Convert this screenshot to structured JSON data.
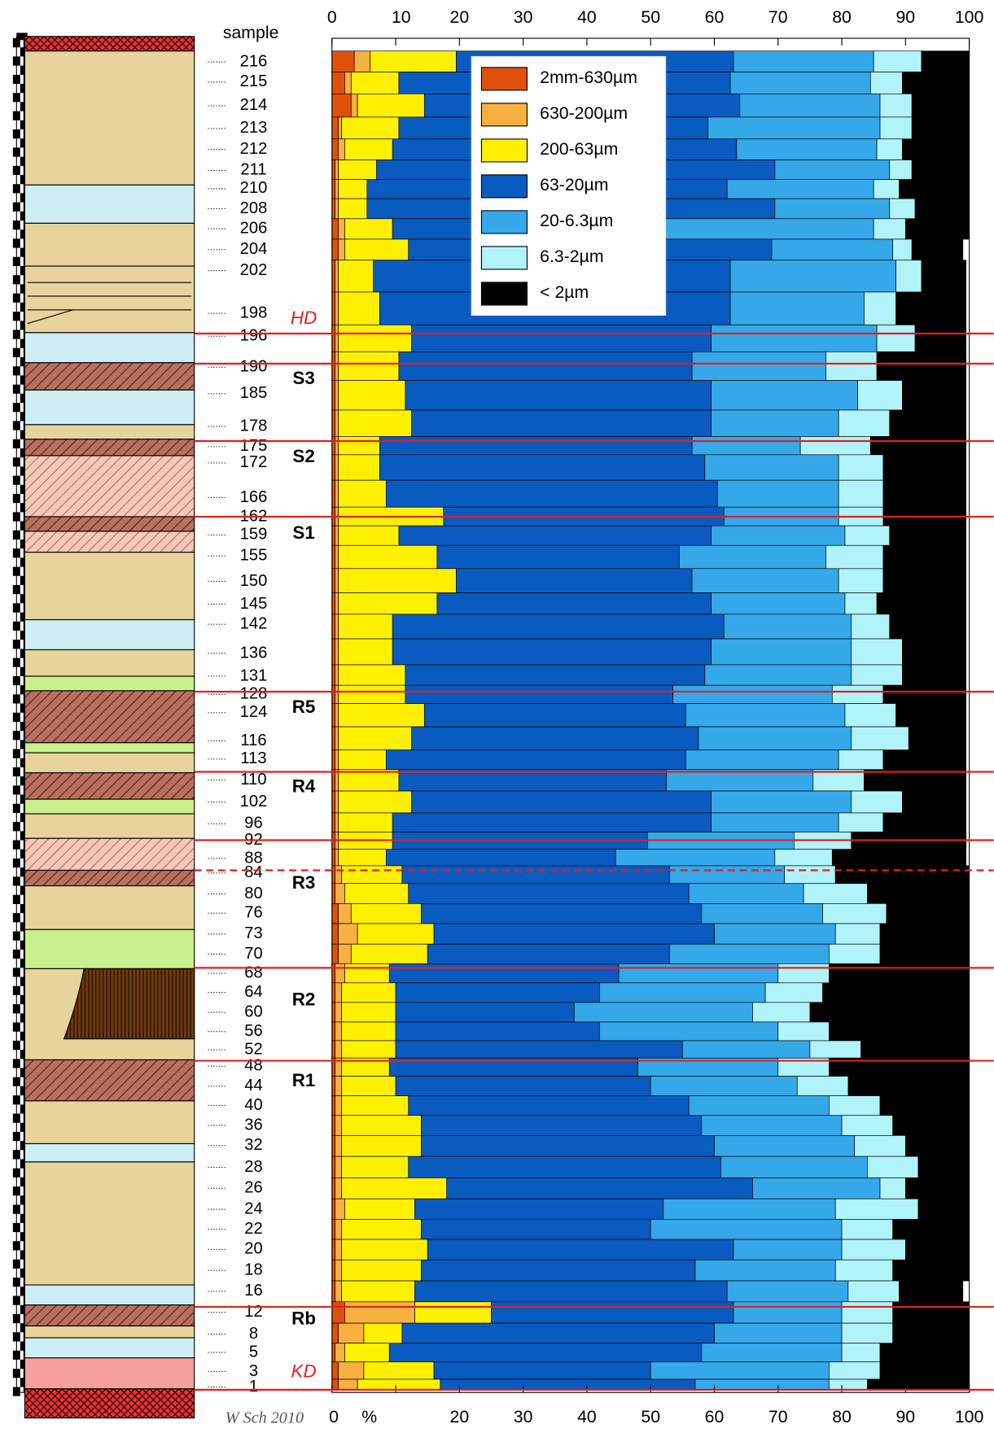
{
  "chart_data": {
    "type": "stacked_barh",
    "y_label": "sample",
    "x_unit": "%",
    "credit": "W Sch 2010",
    "legend": "top-right",
    "xlim": [
      0,
      100
    ],
    "xticks": [
      0,
      10,
      20,
      30,
      40,
      50,
      60,
      70,
      80,
      90,
      100
    ],
    "categories": [
      "216",
      "215",
      "214",
      "213",
      "212",
      "211",
      "210",
      "208",
      "206",
      "204",
      "202",
      "198",
      "196",
      "190",
      "185",
      "178",
      "175",
      "172",
      "166",
      "162",
      "159",
      "155",
      "150",
      "145",
      "142",
      "136",
      "131",
      "128",
      "124",
      "116",
      "113",
      "110",
      "102",
      "96",
      "92",
      "88",
      "84",
      "80",
      "76",
      "73",
      "70",
      "68",
      "64",
      "60",
      "56",
      "52",
      "48",
      "44",
      "40",
      "36",
      "32",
      "28",
      "26",
      "24",
      "22",
      "20",
      "18",
      "16",
      "12",
      "8",
      "5",
      "3",
      "1"
    ],
    "unit_labels": [
      "HD",
      "S3",
      "S2",
      "S1",
      "R5",
      "R4",
      "R3",
      "R2",
      "R1",
      "Rb",
      "KD"
    ],
    "series": [
      {
        "name": "2mm-630µm",
        "color": "#e0500a",
        "values": [
          3.5,
          2,
          3,
          1,
          1,
          0.5,
          0.5,
          0.5,
          1,
          1,
          0.5,
          0.5,
          0.5,
          0.5,
          0.5,
          0.5,
          0.5,
          0.5,
          0.5,
          0.5,
          0.5,
          0.5,
          0.5,
          0.5,
          0.5,
          0.5,
          0.5,
          0.5,
          0.5,
          0.5,
          0.5,
          0.5,
          0.5,
          0.5,
          0.5,
          0.5,
          0.5,
          0.5,
          1,
          1,
          1,
          0.5,
          0.5,
          0.5,
          0.5,
          0.5,
          0.5,
          0.5,
          0.5,
          0.5,
          0.5,
          0.5,
          0.5,
          0.5,
          0.5,
          0.5,
          0.5,
          0.5,
          2,
          1,
          0.5,
          1,
          1
        ]
      },
      {
        "name": "630-200µm",
        "color": "#f8b040",
        "values": [
          2.5,
          1,
          1,
          0.5,
          1,
          0.5,
          0.5,
          0.5,
          1,
          1,
          0.5,
          0.5,
          0.5,
          0.5,
          0.5,
          0.5,
          0.5,
          0.5,
          0.5,
          0.5,
          0.5,
          0.5,
          0.5,
          0.5,
          0.5,
          0.5,
          0.5,
          0.5,
          0.5,
          0.5,
          0.5,
          0.5,
          0.5,
          0.5,
          0.5,
          0.5,
          1,
          1.5,
          2,
          3,
          2,
          1.5,
          1,
          1,
          1,
          1,
          1,
          1,
          1,
          1,
          1,
          1,
          1,
          1.5,
          1,
          1,
          1,
          1,
          11,
          4,
          1.5,
          4,
          3
        ]
      },
      {
        "name": "200-63µm",
        "color": "#fff000",
        "values": [
          13.5,
          7.5,
          10.5,
          9,
          7.5,
          6,
          4.5,
          4.5,
          7.5,
          10,
          5.5,
          6.5,
          11.5,
          9.5,
          10.5,
          11.5,
          6.5,
          6.5,
          7.5,
          16.5,
          9.5,
          15.5,
          18.5,
          15.5,
          8.5,
          8.5,
          10.5,
          10.5,
          13.5,
          11.5,
          7.5,
          9.5,
          11.5,
          8.5,
          8.5,
          7.5,
          9.5,
          10,
          11,
          12,
          12,
          7,
          8.5,
          8.5,
          8.5,
          8.5,
          7.5,
          8.5,
          10.5,
          12.5,
          12.5,
          10.5,
          16.5,
          11,
          12.5,
          13.5,
          12.5,
          11.5,
          12,
          6,
          7,
          11,
          13
        ]
      },
      {
        "name": "63-20µm",
        "color": "#0a5bc0",
        "values": [
          43.5,
          52,
          49.5,
          48.5,
          54,
          62.5,
          56.5,
          64,
          42.5,
          57,
          56,
          55,
          47,
          46,
          48,
          47,
          49,
          51,
          52,
          44,
          49,
          38,
          37,
          43,
          52,
          50,
          47,
          42,
          41,
          45,
          47,
          42,
          47,
          50,
          40,
          36,
          42,
          44,
          44,
          44,
          38,
          36,
          32,
          28,
          32,
          45,
          39,
          40,
          44,
          44,
          46,
          49,
          48,
          39,
          36,
          48,
          43,
          49,
          38,
          49,
          49,
          34,
          40
        ]
      },
      {
        "name": "20-6.3µm",
        "color": "#35a8ea",
        "values": [
          22,
          22,
          22,
          27,
          22,
          18,
          23,
          18,
          33,
          19,
          26,
          21,
          26,
          21,
          23,
          20,
          17,
          21,
          19,
          18,
          21,
          23,
          23,
          21,
          20,
          22,
          23,
          25,
          25,
          24,
          24,
          23,
          22,
          20,
          23,
          25,
          18,
          18,
          19,
          19,
          25,
          25,
          26,
          28,
          28,
          20,
          22,
          23,
          22,
          22,
          22,
          23,
          20,
          27,
          30,
          17,
          22,
          19,
          17,
          20,
          22,
          28,
          21
        ]
      },
      {
        "name": "6.3-2µm",
        "color": "#b0f4fa",
        "values": [
          7.5,
          5,
          5,
          5,
          4,
          3.5,
          4,
          4,
          5,
          3,
          4,
          5,
          6,
          8,
          7,
          8,
          11,
          7,
          7,
          7,
          7,
          9,
          7,
          5,
          6,
          8,
          8,
          8,
          8,
          9,
          7,
          8,
          8,
          7,
          9,
          9,
          8,
          10,
          10,
          7,
          8,
          8,
          9,
          9,
          8,
          8,
          8,
          8,
          8,
          8,
          8,
          8,
          4,
          13,
          8,
          10,
          9,
          8,
          8,
          8,
          6,
          8,
          6
        ]
      },
      {
        "name": "< 2µm",
        "color": "#000000",
        "values": [
          7.5,
          10.5,
          9,
          9,
          10.5,
          9,
          11,
          8.5,
          10,
          8,
          7,
          11,
          8,
          14,
          10,
          12,
          15,
          13,
          13,
          13,
          12,
          13,
          13,
          14,
          12,
          10,
          10,
          13,
          11,
          9,
          13,
          16,
          10,
          13,
          18,
          21,
          21,
          16,
          13,
          14,
          14,
          22,
          23,
          25,
          22,
          17,
          22,
          19,
          14,
          12,
          10,
          8,
          10,
          8,
          12,
          10,
          12,
          10,
          12,
          12,
          14,
          14,
          16
        ]
      }
    ]
  }
}
